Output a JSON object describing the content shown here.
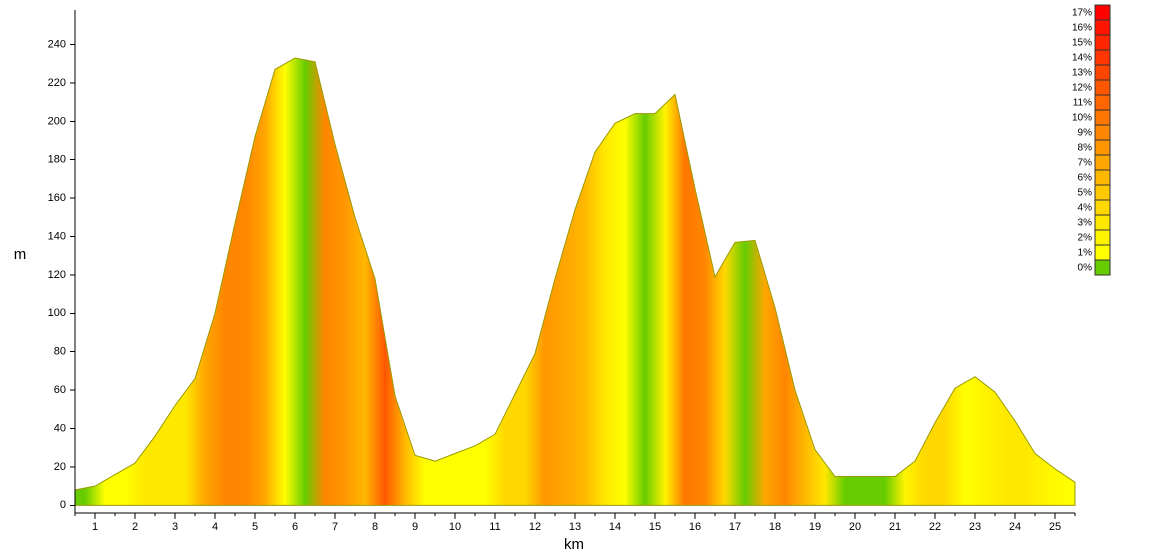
{
  "chart_data": {
    "type": "area",
    "xlabel": "km",
    "ylabel": "m",
    "x": [
      0.5,
      1,
      1.5,
      2,
      2.5,
      3,
      3.5,
      4,
      4.5,
      5,
      5.5,
      6,
      6.5,
      7,
      7.5,
      8,
      8.5,
      9,
      9.5,
      10,
      10.5,
      11,
      11.5,
      12,
      12.5,
      13,
      13.5,
      14,
      14.5,
      15,
      15.5,
      16,
      16.5,
      17,
      17.5,
      18,
      18.5,
      19,
      19.5,
      20,
      20.5,
      21,
      21.5,
      22,
      22.5,
      23,
      23.5,
      24,
      24.5,
      25,
      25.5
    ],
    "values": [
      8,
      10,
      16,
      22,
      36,
      52,
      66,
      100,
      147,
      192,
      227,
      233,
      231,
      188,
      150,
      118,
      57,
      26,
      23,
      27,
      31,
      37,
      58,
      79,
      118,
      154,
      184,
      199,
      204,
      204,
      214,
      165,
      119,
      137,
      138,
      103,
      60,
      29,
      15,
      15,
      15,
      15,
      23,
      43,
      61,
      67,
      59,
      44,
      27,
      19,
      12
    ],
    "xlim": [
      0.5,
      25.5
    ],
    "ylim": [
      -4,
      258
    ],
    "xticks": [
      1,
      2,
      3,
      4,
      5,
      6,
      7,
      8,
      9,
      10,
      11,
      12,
      13,
      14,
      15,
      16,
      17,
      18,
      19,
      20,
      21,
      22,
      23,
      24,
      25
    ],
    "yticks": [
      0,
      20,
      40,
      60,
      80,
      100,
      120,
      140,
      160,
      180,
      200,
      220,
      240
    ],
    "line_color": "#9a9a00",
    "grade_legend": [
      {
        "value": 17,
        "label": "17%",
        "color": "#ff0000"
      },
      {
        "value": 16,
        "label": "16%",
        "color": "#ff1400"
      },
      {
        "value": 15,
        "label": "15%",
        "color": "#ff2600"
      },
      {
        "value": 14,
        "label": "14%",
        "color": "#ff3600"
      },
      {
        "value": 13,
        "label": "13%",
        "color": "#ff4600"
      },
      {
        "value": 12,
        "label": "12%",
        "color": "#ff5600"
      },
      {
        "value": 11,
        "label": "11%",
        "color": "#ff6600"
      },
      {
        "value": 10,
        "label": "10%",
        "color": "#ff7600"
      },
      {
        "value": 9,
        "label": "9%",
        "color": "#ff8600"
      },
      {
        "value": 8,
        "label": "8%",
        "color": "#ff9600"
      },
      {
        "value": 7,
        "label": "7%",
        "color": "#ffa600"
      },
      {
        "value": 6,
        "label": "6%",
        "color": "#ffb800"
      },
      {
        "value": 5,
        "label": "5%",
        "color": "#ffc800"
      },
      {
        "value": 4,
        "label": "4%",
        "color": "#ffd800"
      },
      {
        "value": 3,
        "label": "3%",
        "color": "#ffe800"
      },
      {
        "value": 2,
        "label": "2%",
        "color": "#fff400"
      },
      {
        "value": 1,
        "label": "1%",
        "color": "#ffff00"
      },
      {
        "value": 0,
        "label": "0%",
        "color": "#66cc00"
      }
    ]
  }
}
